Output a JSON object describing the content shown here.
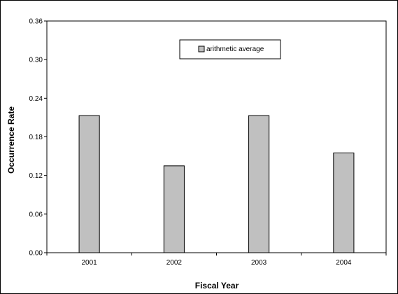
{
  "chart_data": {
    "type": "bar",
    "categories": [
      "2001",
      "2002",
      "2003",
      "2004"
    ],
    "series": [
      {
        "name": "arithmetic average",
        "values": [
          0.213,
          0.135,
          0.213,
          0.155
        ]
      }
    ],
    "title": "",
    "xlabel": "Fiscal Year",
    "ylabel": "Occurrence Rate",
    "ylim": [
      0,
      0.36
    ],
    "yticks": [
      "0.00",
      "0.06",
      "0.12",
      "0.18",
      "0.24",
      "0.30",
      "0.36"
    ],
    "grid": false,
    "legend_position": "top-center"
  },
  "colors": {
    "bar_fill": "#c0c0c0",
    "bar_stroke": "#000000",
    "axis": "#000000"
  }
}
